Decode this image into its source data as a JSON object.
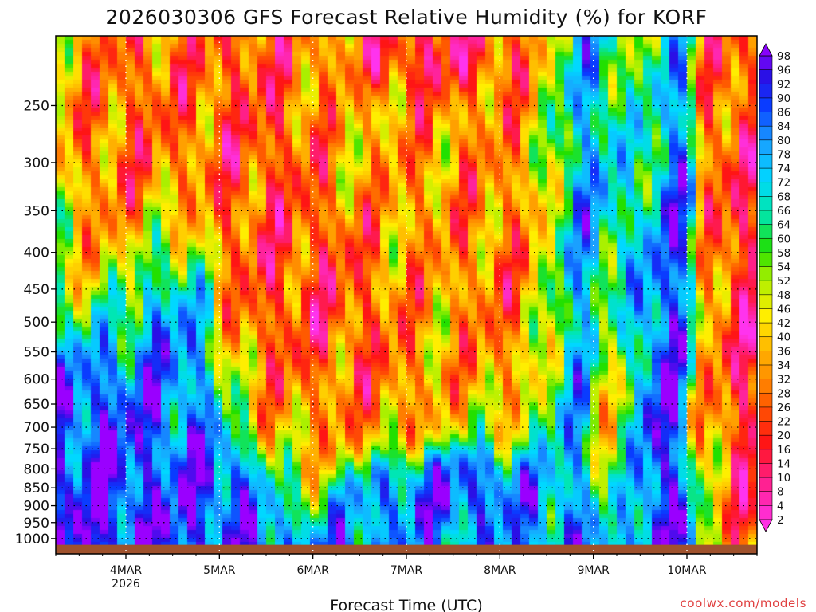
{
  "chart_data": {
    "type": "heatmap",
    "title": "2026030306 GFS Forecast Relative Humidity (%) for KORF",
    "xlabel": "Forecast Time (UTC)",
    "ylabel": "",
    "x_range": [
      "2026-03-03T06:00Z",
      "2026-03-10T18:00Z"
    ],
    "x_ticks": [
      {
        "date": "2026-03-04T00:00Z",
        "label": "4MAR",
        "sublabel": "2026"
      },
      {
        "date": "2026-03-05T00:00Z",
        "label": "5MAR",
        "sublabel": ""
      },
      {
        "date": "2026-03-06T00:00Z",
        "label": "6MAR",
        "sublabel": ""
      },
      {
        "date": "2026-03-07T00:00Z",
        "label": "7MAR",
        "sublabel": ""
      },
      {
        "date": "2026-03-08T00:00Z",
        "label": "8MAR",
        "sublabel": ""
      },
      {
        "date": "2026-03-09T00:00Z",
        "label": "9MAR",
        "sublabel": ""
      },
      {
        "date": "2026-03-10T00:00Z",
        "label": "10MAR",
        "sublabel": ""
      }
    ],
    "y_axis": {
      "quantity": "pressure (hPa)",
      "scale": "log",
      "reversed": true,
      "range": [
        1050,
        200
      ]
    },
    "y_ticks": [
      250,
      300,
      350,
      400,
      450,
      500,
      550,
      600,
      650,
      700,
      750,
      800,
      850,
      900,
      950,
      1000
    ],
    "grid": true,
    "colorbar": {
      "placement": "right",
      "labels": [
        98,
        96,
        92,
        90,
        86,
        84,
        80,
        78,
        74,
        72,
        68,
        66,
        64,
        60,
        58,
        54,
        52,
        48,
        46,
        42,
        40,
        36,
        34,
        32,
        28,
        26,
        22,
        20,
        16,
        14,
        10,
        8,
        4,
        2
      ],
      "stops": [
        {
          "v": 0,
          "c": "#ff33ee"
        },
        {
          "v": 10,
          "c": "#ff1f88"
        },
        {
          "v": 18,
          "c": "#ff1515"
        },
        {
          "v": 26,
          "c": "#ff5a00"
        },
        {
          "v": 34,
          "c": "#ffa000"
        },
        {
          "v": 44,
          "c": "#ffee00"
        },
        {
          "v": 52,
          "c": "#aaf000"
        },
        {
          "v": 58,
          "c": "#22e000"
        },
        {
          "v": 66,
          "c": "#00e6b4"
        },
        {
          "v": 72,
          "c": "#00d8ff"
        },
        {
          "v": 80,
          "c": "#1aa0ff"
        },
        {
          "v": 88,
          "c": "#0a3cff"
        },
        {
          "v": 94,
          "c": "#2a10e6"
        },
        {
          "v": 100,
          "c": "#9a00ff"
        }
      ]
    },
    "ground_color": "#a0522d",
    "features": [
      {
        "x": 0.12,
        "y": 0.17,
        "v": 24,
        "sx": 0.05,
        "sy": 0.16
      },
      {
        "x": 0.28,
        "y": 0.22,
        "v": 20,
        "sx": 0.05,
        "sy": 0.22
      },
      {
        "x": 0.35,
        "y": 0.5,
        "v": 18,
        "sx": 0.06,
        "sy": 0.12
      },
      {
        "x": 0.4,
        "y": 0.58,
        "v": 20,
        "sx": 0.05,
        "sy": 0.1
      },
      {
        "x": 0.46,
        "y": 0.68,
        "v": 24,
        "sx": 0.05,
        "sy": 0.08
      },
      {
        "x": 0.38,
        "y": 0.74,
        "v": 34,
        "sx": 0.07,
        "sy": 0.08
      },
      {
        "x": 0.58,
        "y": 0.32,
        "v": 30,
        "sx": 0.07,
        "sy": 0.24
      },
      {
        "x": 0.55,
        "y": 0.04,
        "v": 6,
        "sx": 0.06,
        "sy": 0.04
      },
      {
        "x": 0.63,
        "y": 0.5,
        "v": 24,
        "sx": 0.03,
        "sy": 0.12
      },
      {
        "x": 0.05,
        "y": 0.78,
        "v": 94,
        "sx": 0.06,
        "sy": 0.09
      },
      {
        "x": 0.07,
        "y": 0.95,
        "v": 96,
        "sx": 0.05,
        "sy": 0.05
      },
      {
        "x": 0.17,
        "y": 0.64,
        "v": 88,
        "sx": 0.04,
        "sy": 0.15
      },
      {
        "x": 0.23,
        "y": 0.86,
        "v": 94,
        "sx": 0.04,
        "sy": 0.06
      },
      {
        "x": 0.48,
        "y": 0.87,
        "v": 88,
        "sx": 0.05,
        "sy": 0.04
      },
      {
        "x": 0.58,
        "y": 0.87,
        "v": 94,
        "sx": 0.05,
        "sy": 0.04
      },
      {
        "x": 0.76,
        "y": 0.28,
        "v": 82,
        "sx": 0.03,
        "sy": 0.3
      },
      {
        "x": 0.8,
        "y": 0.7,
        "v": 24,
        "sx": 0.02,
        "sy": 0.12
      },
      {
        "x": 0.85,
        "y": 0.72,
        "v": 96,
        "sx": 0.03,
        "sy": 0.15
      },
      {
        "x": 0.88,
        "y": 0.4,
        "v": 90,
        "sx": 0.02,
        "sy": 0.25
      },
      {
        "x": 0.95,
        "y": 0.4,
        "v": 20,
        "sx": 0.02,
        "sy": 0.35
      },
      {
        "x": 0.98,
        "y": 0.7,
        "v": 8,
        "sx": 0.015,
        "sy": 0.3
      },
      {
        "x": 0.93,
        "y": 0.72,
        "v": 30,
        "sx": 0.02,
        "sy": 0.08
      }
    ]
  },
  "credit": "coolwx.com/models"
}
